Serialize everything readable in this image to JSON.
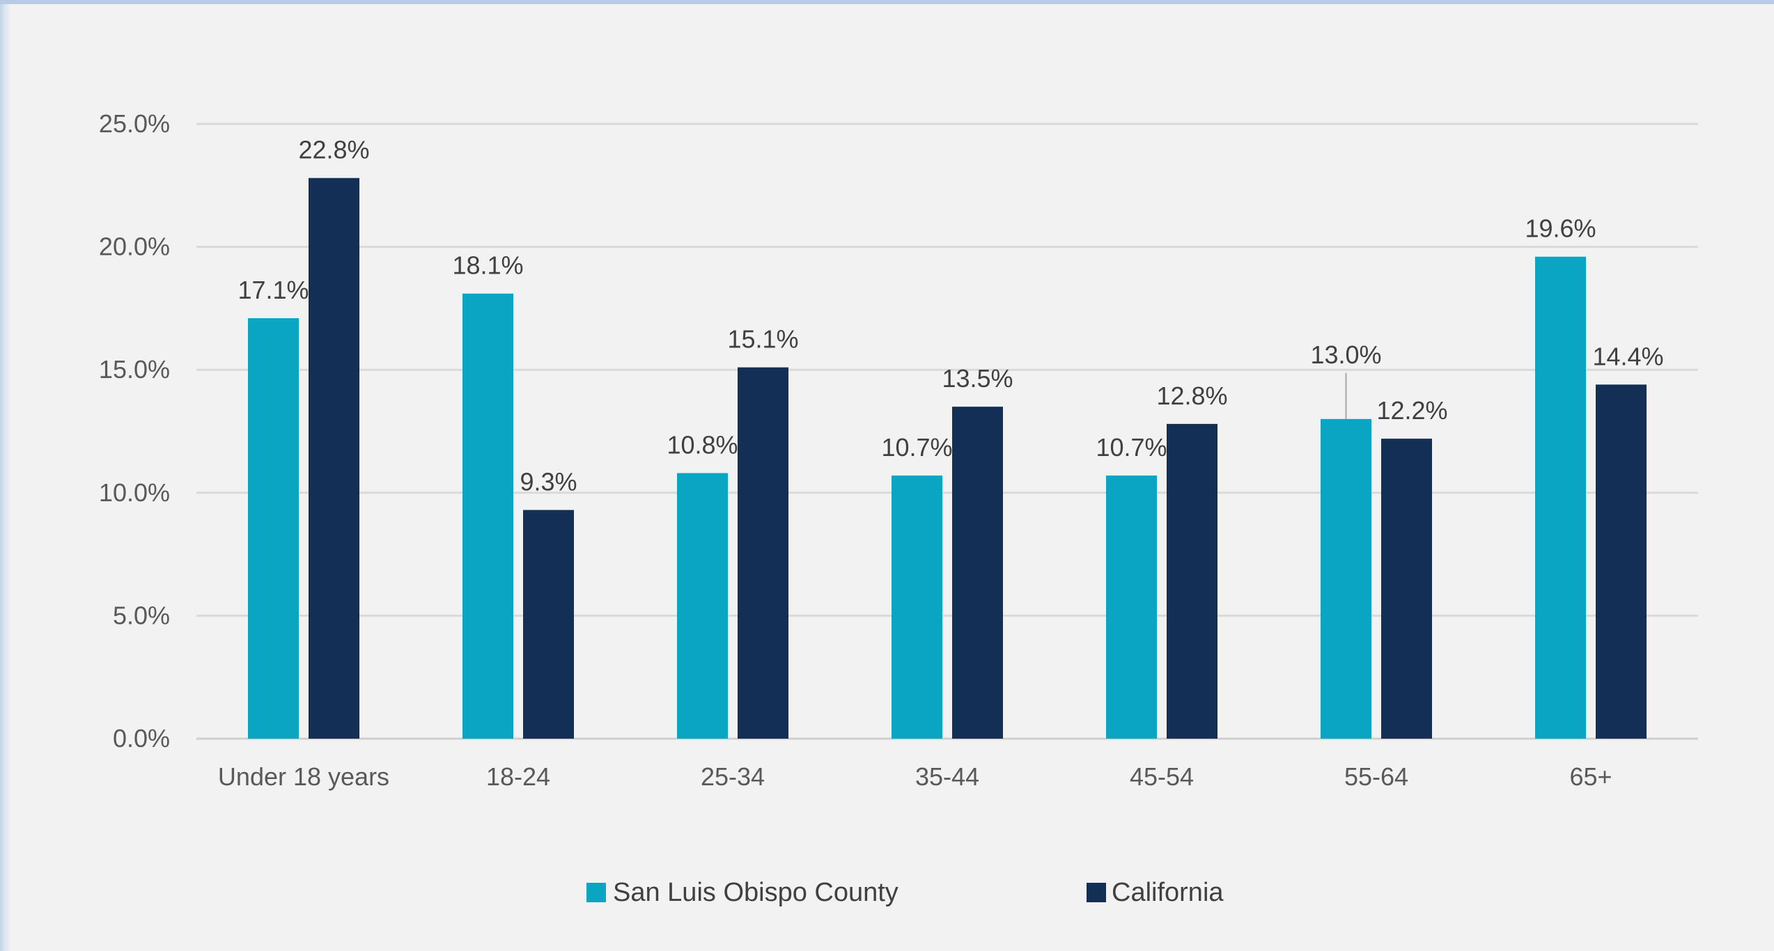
{
  "chart_data": {
    "type": "bar",
    "title": "",
    "xlabel": "",
    "ylabel": "",
    "categories": [
      "Under 18 years",
      "18-24",
      "25-34",
      "35-44",
      "45-54",
      "55-64",
      "65+"
    ],
    "series": [
      {
        "name": "San Luis Obispo County",
        "color": "#0ba5c4",
        "values": [
          17.1,
          18.1,
          10.8,
          10.7,
          10.7,
          13.0,
          19.6
        ],
        "labels": [
          "17.1%",
          "18.1%",
          "10.8%",
          "10.7%",
          "10.7%",
          "13.0%",
          "19.6%"
        ]
      },
      {
        "name": "California",
        "color": "#132f56",
        "values": [
          22.8,
          9.3,
          15.1,
          13.5,
          12.8,
          12.2,
          14.4
        ],
        "labels": [
          "22.8%",
          "9.3%",
          "15.1%",
          "13.5%",
          "12.8%",
          "12.2%",
          "14.4%"
        ]
      }
    ],
    "yticks": [
      0,
      5,
      10,
      15,
      20,
      25
    ],
    "ytick_labels": [
      "0.0%",
      "5.0%",
      "10.0%",
      "15.0%",
      "20.0%",
      "25.0%"
    ],
    "ylim": [
      0,
      25
    ],
    "grid": true,
    "legend_position": "bottom"
  }
}
